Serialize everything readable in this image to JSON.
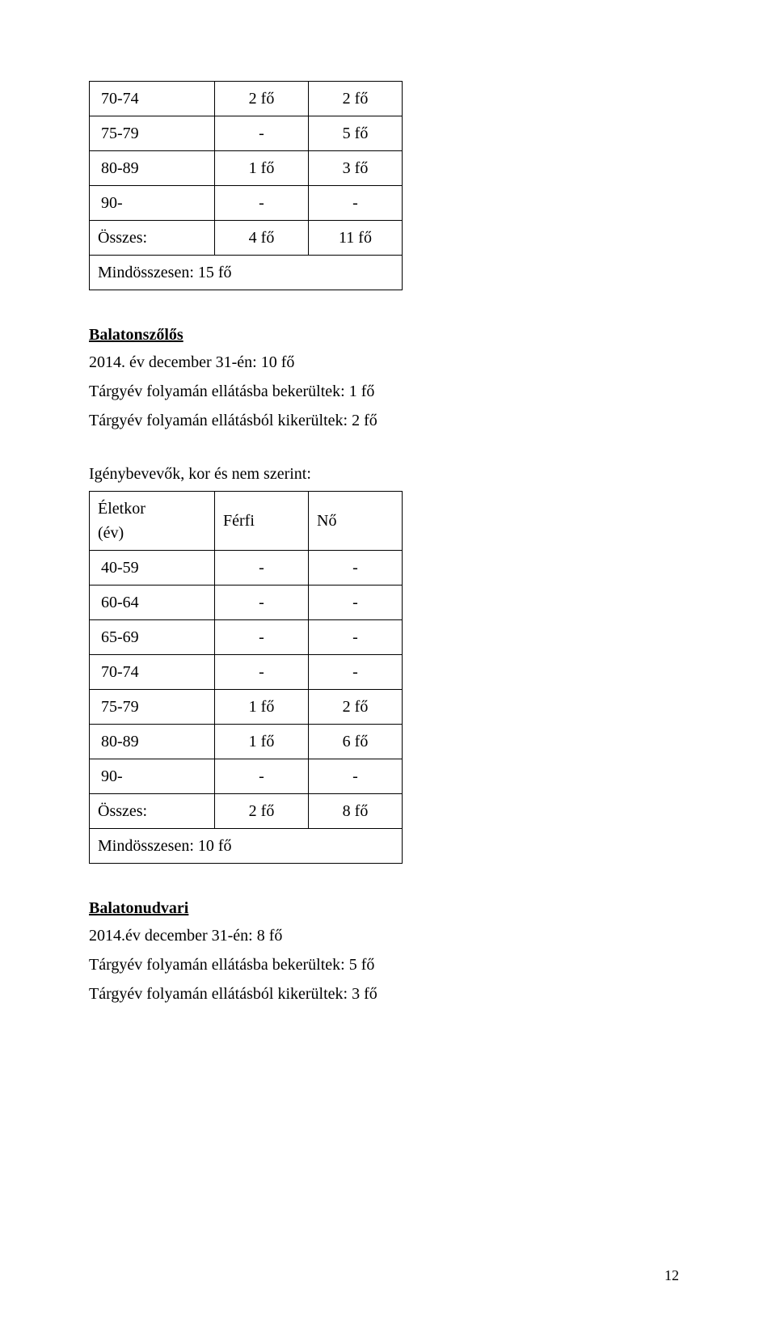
{
  "table1": {
    "rows": [
      [
        "70-74",
        "2 fő",
        "2 fő"
      ],
      [
        "75-79",
        "-",
        "5 fő"
      ],
      [
        "80-89",
        "1 fő",
        "3 fő"
      ],
      [
        "90-",
        "-",
        "-"
      ],
      [
        "Összes:",
        "4 fő",
        "11 fő"
      ]
    ],
    "total": "Mindösszesen: 15 fő"
  },
  "section1": {
    "heading": "Balatonszőlős",
    "line1": "2014. év december 31-én: 10 fő",
    "line2": "Tárgyév folyamán ellátásba bekerültek: 1 fő",
    "line3": "Tárgyév folyamán ellátásból kikerültek: 2 fő",
    "line4": "Igénybevevők, kor és nem szerint:"
  },
  "table2": {
    "header": [
      "Életkor (év)",
      "Férfi",
      "Nő"
    ],
    "header_line1": "Életkor",
    "header_line2": "(év)",
    "header_col2": "Férfi",
    "header_col3": "Nő",
    "rows": [
      [
        "40-59",
        "-",
        "-"
      ],
      [
        "60-64",
        "-",
        "-"
      ],
      [
        "65-69",
        "-",
        "-"
      ],
      [
        "70-74",
        "-",
        "-"
      ],
      [
        "75-79",
        "1 fő",
        "2 fő"
      ],
      [
        "80-89",
        "1 fő",
        "6 fő"
      ],
      [
        "90-",
        "-",
        "-"
      ],
      [
        "Összes:",
        "2 fő",
        "8 fő"
      ]
    ],
    "total": "Mindösszesen: 10 fő"
  },
  "section2": {
    "heading": "Balatonudvari",
    "line1": "2014.év december 31-én: 8 fő",
    "line2": "Tárgyév folyamán ellátásba bekerültek: 5 fő",
    "line3": "Tárgyév folyamán ellátásból kikerültek: 3 fő"
  },
  "page_number": "12"
}
